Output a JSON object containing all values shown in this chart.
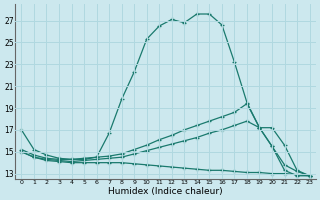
{
  "xlabel": "Humidex (Indice chaleur)",
  "xlim": [
    -0.5,
    23.5
  ],
  "ylim": [
    12.5,
    28.5
  ],
  "yticks": [
    13,
    15,
    17,
    19,
    21,
    23,
    25,
    27
  ],
  "xticks": [
    0,
    1,
    2,
    3,
    4,
    5,
    6,
    7,
    8,
    9,
    10,
    11,
    12,
    13,
    14,
    15,
    16,
    17,
    18,
    19,
    20,
    21,
    22,
    23
  ],
  "bg_color": "#cce8ee",
  "grid_color": "#b0d8e0",
  "line_color": "#1a7a6e",
  "lines": [
    {
      "x": [
        0,
        1,
        2,
        3,
        4,
        5,
        6,
        7,
        8,
        9,
        10,
        11,
        12,
        13,
        14,
        15,
        16,
        17,
        18,
        19,
        20,
        21,
        22,
        23
      ],
      "y": [
        17,
        15.2,
        14.7,
        14.4,
        14.3,
        14.3,
        14.5,
        16.7,
        19.8,
        22.3,
        25.3,
        26.5,
        27.1,
        26.8,
        27.6,
        27.6,
        26.6,
        23.2,
        19.5,
        17.2,
        15.5,
        13.3,
        12.8,
        12.8
      ]
    },
    {
      "x": [
        0,
        1,
        2,
        3,
        4,
        5,
        6,
        7,
        8,
        9,
        10,
        11,
        12,
        13,
        14,
        15,
        16,
        17,
        18,
        19,
        20,
        21,
        22,
        23
      ],
      "y": [
        15.2,
        14.7,
        14.4,
        14.3,
        14.3,
        14.4,
        14.5,
        14.6,
        14.8,
        15.2,
        15.6,
        16.1,
        16.5,
        17.0,
        17.4,
        17.8,
        18.2,
        18.6,
        19.4,
        17.2,
        15.5,
        13.8,
        13.2,
        12.8
      ]
    },
    {
      "x": [
        0,
        1,
        2,
        3,
        4,
        5,
        6,
        7,
        8,
        9,
        10,
        11,
        12,
        13,
        14,
        15,
        16,
        17,
        18,
        19,
        20,
        21,
        22,
        23
      ],
      "y": [
        15.0,
        14.5,
        14.3,
        14.2,
        14.1,
        14.2,
        14.3,
        14.4,
        14.5,
        14.8,
        15.1,
        15.4,
        15.7,
        16.0,
        16.3,
        16.7,
        17.0,
        17.4,
        17.8,
        17.2,
        17.2,
        15.6,
        13.3,
        12.8
      ]
    },
    {
      "x": [
        0,
        1,
        2,
        3,
        4,
        5,
        6,
        7,
        8,
        9,
        10,
        11,
        12,
        13,
        14,
        15,
        16,
        17,
        18,
        19,
        20,
        21,
        22,
        23
      ],
      "y": [
        15.0,
        14.5,
        14.2,
        14.1,
        14.0,
        14.0,
        14.0,
        14.0,
        14.0,
        13.9,
        13.8,
        13.7,
        13.6,
        13.5,
        13.4,
        13.3,
        13.3,
        13.2,
        13.1,
        13.1,
        13.0,
        13.0,
        12.9,
        12.8
      ]
    }
  ]
}
